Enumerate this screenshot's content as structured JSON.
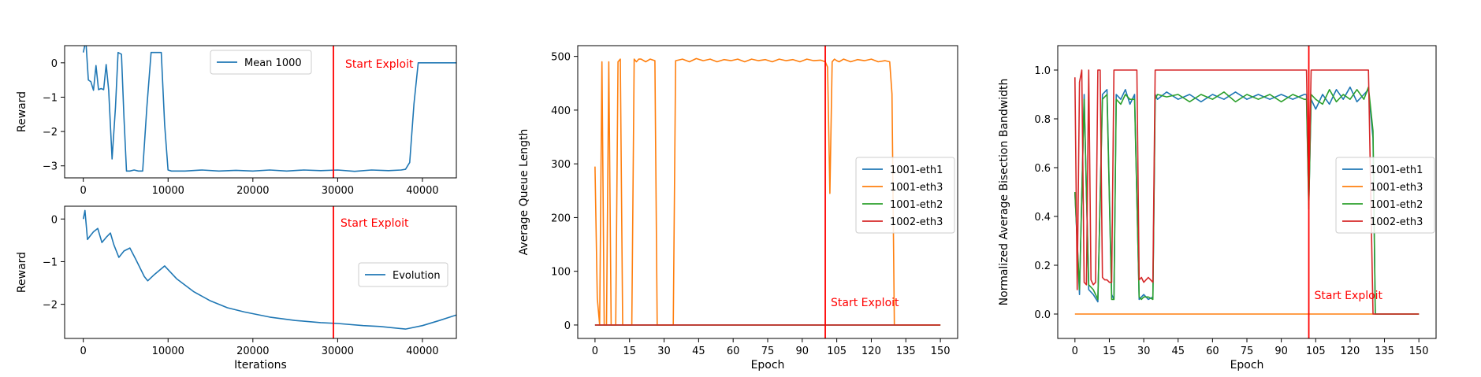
{
  "charts": {
    "reward_mean": {
      "type": "line",
      "xlim": [
        -2200,
        44000
      ],
      "ylim": [
        -3.35,
        0.5
      ],
      "xticks": [
        0,
        10000,
        20000,
        30000,
        40000
      ],
      "yticks": [
        0,
        -1,
        -2,
        -3
      ],
      "xlabel": "",
      "ylabel": "Reward",
      "legend_location": "upper center",
      "vline_x": 29500,
      "vline_label": "Start Exploit",
      "series": [
        {
          "name": "Mean 1000",
          "color": "#1f77b4",
          "x": [
            0,
            300,
            600,
            900,
            1200,
            1500,
            1800,
            2100,
            2400,
            2700,
            3000,
            3400,
            3800,
            4100,
            4500,
            4800,
            5100,
            5500,
            6000,
            6500,
            7000,
            7500,
            8000,
            8400,
            8800,
            9200,
            9600,
            10000,
            10400,
            12000,
            14000,
            16000,
            18000,
            20000,
            22000,
            24000,
            26000,
            28000,
            30000,
            32000,
            34000,
            36000,
            37500,
            38000,
            38500,
            39000,
            39500,
            40000,
            44000
          ],
          "y": [
            0.3,
            0.65,
            -0.5,
            -0.55,
            -0.8,
            -0.08,
            -0.78,
            -0.75,
            -0.78,
            -0.05,
            -0.8,
            -2.8,
            -1.3,
            0.3,
            0.25,
            -1.6,
            -3.15,
            -3.15,
            -3.12,
            -3.15,
            -3.15,
            -1.3,
            0.3,
            0.3,
            0.3,
            0.3,
            -1.8,
            -3.12,
            -3.15,
            -3.15,
            -3.12,
            -3.15,
            -3.13,
            -3.15,
            -3.12,
            -3.15,
            -3.12,
            -3.14,
            -3.12,
            -3.16,
            -3.12,
            -3.14,
            -3.12,
            -3.1,
            -2.9,
            -1.2,
            0.0,
            0.0,
            0.0
          ]
        }
      ]
    },
    "reward_evolution": {
      "type": "line",
      "xlim": [
        -2200,
        44000
      ],
      "ylim": [
        -2.8,
        0.3
      ],
      "xticks": [
        0,
        10000,
        20000,
        30000,
        40000
      ],
      "yticks": [
        0,
        -1,
        -2
      ],
      "xlabel": "Iterations",
      "ylabel": "Reward",
      "legend_location": "center right",
      "vline_x": 29500,
      "vline_label": "Start Exploit",
      "series": [
        {
          "name": "Evolution",
          "color": "#1f77b4",
          "x": [
            0,
            200,
            500,
            800,
            1200,
            1700,
            2200,
            2700,
            3200,
            3600,
            4200,
            4800,
            5500,
            6200,
            7200,
            7600,
            8400,
            9600,
            11000,
            13000,
            15000,
            17000,
            19000,
            22000,
            25000,
            28000,
            30000,
            33000,
            35000,
            38000,
            40000,
            42000,
            44000
          ],
          "y": [
            0.0,
            0.2,
            -0.48,
            -0.4,
            -0.3,
            -0.22,
            -0.55,
            -0.43,
            -0.33,
            -0.6,
            -0.9,
            -0.75,
            -0.68,
            -0.95,
            -1.35,
            -1.45,
            -1.3,
            -1.1,
            -1.4,
            -1.7,
            -1.92,
            -2.08,
            -2.18,
            -2.3,
            -2.38,
            -2.43,
            -2.45,
            -2.5,
            -2.52,
            -2.58,
            -2.5,
            -2.38,
            -2.25
          ]
        }
      ]
    },
    "queue": {
      "type": "line",
      "xlim": [
        -7.5,
        157.5
      ],
      "ylim": [
        -25,
        520
      ],
      "xticks": [
        0,
        15,
        30,
        45,
        60,
        75,
        90,
        105,
        120,
        135,
        150
      ],
      "yticks": [
        0,
        100,
        200,
        300,
        400,
        500
      ],
      "xlabel": "Epoch",
      "ylabel": "Average Queue Length",
      "legend_location": "center right",
      "vline_x": 100,
      "vline_label": "Start Exploit",
      "series": [
        {
          "name": "1001-eth1",
          "color": "#1f77b4",
          "x": [
            0,
            150
          ],
          "y": [
            0,
            0
          ]
        },
        {
          "name": "1001-eth3",
          "color": "#ff7f0e",
          "x": [
            0,
            1,
            2,
            3,
            4,
            5,
            6,
            7,
            8,
            9,
            10,
            11,
            12,
            13,
            14,
            15,
            16,
            17,
            18,
            19,
            20,
            22,
            24,
            26,
            27,
            28,
            29,
            30,
            31,
            32,
            33,
            34,
            35,
            38,
            41,
            44,
            47,
            50,
            53,
            56,
            59,
            62,
            65,
            68,
            71,
            74,
            77,
            80,
            83,
            86,
            89,
            92,
            95,
            98,
            100,
            101,
            102,
            103,
            104,
            105,
            106,
            108,
            111,
            114,
            117,
            120,
            123,
            126,
            128,
            129,
            130,
            131,
            132,
            135,
            140,
            150
          ],
          "y": [
            295,
            50,
            0,
            490,
            0,
            0,
            490,
            0,
            0,
            0,
            490,
            495,
            0,
            0,
            0,
            0,
            0,
            495,
            490,
            495,
            495,
            490,
            495,
            492,
            0,
            0,
            0,
            0,
            0,
            0,
            0,
            0,
            492,
            495,
            490,
            496,
            492,
            495,
            490,
            494,
            492,
            495,
            490,
            495,
            492,
            494,
            490,
            495,
            492,
            494,
            490,
            495,
            492,
            493,
            490,
            480,
            245,
            490,
            495,
            492,
            490,
            495,
            490,
            494,
            492,
            495,
            490,
            492,
            490,
            430,
            0,
            0,
            0,
            0,
            0,
            0
          ]
        },
        {
          "name": "1001-eth2",
          "color": "#2ca02c",
          "x": [
            0,
            150
          ],
          "y": [
            0,
            0
          ]
        },
        {
          "name": "1002-eth3",
          "color": "#d62728",
          "x": [
            0,
            150
          ],
          "y": [
            0,
            0
          ]
        }
      ]
    },
    "bisection": {
      "type": "line",
      "xlim": [
        -7.5,
        157.5
      ],
      "ylim": [
        -0.1,
        1.1
      ],
      "xticks": [
        0,
        15,
        30,
        45,
        60,
        75,
        90,
        105,
        120,
        135,
        150
      ],
      "yticks": [
        0.0,
        0.2,
        0.4,
        0.6,
        0.8,
        1.0
      ],
      "xlabel": "Epoch",
      "ylabel": "Normalized Average Bisection Bandwidth",
      "legend_location": "center right",
      "vline_x": 102,
      "vline_label": "Start Exploit",
      "series": [
        {
          "name": "1001-eth1",
          "color": "#1f77b4",
          "x": [
            0,
            2,
            4,
            6,
            8,
            10,
            12,
            14,
            16,
            17,
            18,
            20,
            22,
            24,
            26,
            28,
            29,
            30,
            32,
            34,
            35,
            36,
            40,
            45,
            50,
            55,
            60,
            65,
            70,
            75,
            80,
            85,
            90,
            95,
            100,
            101,
            102,
            103,
            105,
            108,
            111,
            114,
            117,
            120,
            123,
            126,
            128,
            130,
            131,
            135,
            150
          ],
          "y": [
            0.5,
            0.08,
            0.9,
            0.1,
            0.08,
            0.05,
            0.9,
            0.92,
            0.08,
            0.06,
            0.9,
            0.88,
            0.92,
            0.86,
            0.9,
            0.06,
            0.07,
            0.08,
            0.06,
            0.07,
            0.9,
            0.88,
            0.91,
            0.88,
            0.9,
            0.87,
            0.9,
            0.88,
            0.91,
            0.88,
            0.9,
            0.88,
            0.9,
            0.88,
            0.9,
            0.9,
            0.45,
            0.88,
            0.84,
            0.9,
            0.86,
            0.92,
            0.88,
            0.93,
            0.87,
            0.9,
            0.92,
            0.72,
            0.0,
            0.0,
            0.0
          ]
        },
        {
          "name": "1001-eth3",
          "color": "#ff7f0e",
          "x": [
            0,
            150
          ],
          "y": [
            0,
            0
          ]
        },
        {
          "name": "1001-eth2",
          "color": "#2ca02c",
          "x": [
            0,
            2,
            4,
            6,
            8,
            10,
            12,
            14,
            16,
            17,
            18,
            20,
            22,
            24,
            26,
            28,
            29,
            30,
            32,
            34,
            35,
            36,
            40,
            45,
            50,
            55,
            60,
            65,
            70,
            75,
            80,
            85,
            90,
            95,
            100,
            101,
            102,
            103,
            105,
            108,
            111,
            114,
            117,
            120,
            123,
            126,
            128,
            130,
            131,
            135,
            150
          ],
          "y": [
            0.5,
            0.1,
            0.88,
            0.12,
            0.1,
            0.06,
            0.88,
            0.9,
            0.06,
            0.06,
            0.88,
            0.86,
            0.9,
            0.88,
            0.88,
            0.07,
            0.06,
            0.07,
            0.07,
            0.06,
            0.88,
            0.9,
            0.89,
            0.9,
            0.87,
            0.9,
            0.88,
            0.91,
            0.87,
            0.9,
            0.88,
            0.9,
            0.87,
            0.9,
            0.88,
            0.88,
            0.43,
            0.9,
            0.88,
            0.86,
            0.92,
            0.87,
            0.9,
            0.88,
            0.92,
            0.88,
            0.93,
            0.75,
            0.0,
            0.0,
            0.0
          ]
        },
        {
          "name": "1002-eth3",
          "color": "#d62728",
          "x": [
            0,
            1,
            2,
            3,
            4,
            5,
            6,
            7,
            8,
            9,
            10,
            11,
            12,
            13,
            14,
            15,
            16,
            17,
            18,
            19,
            22,
            25,
            27,
            28,
            29,
            30,
            31,
            32,
            33,
            34,
            35,
            40,
            50,
            60,
            70,
            80,
            90,
            100,
            101,
            102,
            103,
            104,
            110,
            120,
            128,
            129,
            130,
            131,
            135,
            150
          ],
          "y": [
            0.97,
            0.1,
            0.95,
            1.0,
            0.13,
            0.12,
            1.0,
            0.14,
            0.12,
            0.13,
            1.0,
            1.0,
            0.15,
            0.14,
            0.14,
            0.13,
            0.13,
            1.0,
            1.0,
            1.0,
            1.0,
            1.0,
            1.0,
            0.14,
            0.15,
            0.13,
            0.14,
            0.15,
            0.14,
            0.13,
            1.0,
            1.0,
            1.0,
            1.0,
            1.0,
            1.0,
            1.0,
            1.0,
            1.0,
            0.5,
            1.0,
            1.0,
            1.0,
            1.0,
            1.0,
            0.5,
            0.0,
            0.0,
            0.0,
            0.0
          ]
        }
      ]
    }
  }
}
